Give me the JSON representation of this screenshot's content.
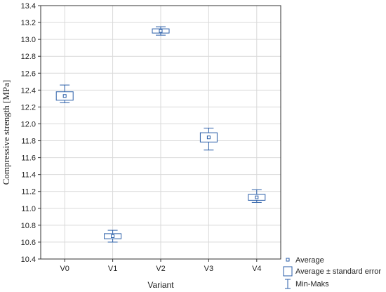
{
  "chart_data": {
    "type": "box",
    "xlabel": "Variant",
    "ylabel": "Compressive strength [MPa]",
    "categories": [
      "V0",
      "V1",
      "V2",
      "V3",
      "V4"
    ],
    "average": [
      12.33,
      10.67,
      13.1,
      11.84,
      11.13
    ],
    "standard_error": [
      0.05,
      0.03,
      0.025,
      0.055,
      0.035
    ],
    "min": [
      12.25,
      10.6,
      13.05,
      11.69,
      11.07
    ],
    "max": [
      12.46,
      10.74,
      13.15,
      11.95,
      11.22
    ],
    "ylim": [
      10.4,
      13.4
    ],
    "yticks": [
      "10.4",
      "10.6",
      "10.8",
      "11.0",
      "11.2",
      "11.4",
      "11.6",
      "11.8",
      "12.0",
      "12.2",
      "12.4",
      "12.6",
      "12.8",
      "13.0",
      "13.2",
      "13.4"
    ],
    "grid": true,
    "legend": {
      "placement": "bottom-right",
      "entries": [
        "Average",
        "Average ± standard error",
        "Min-Maks"
      ]
    },
    "colors": {
      "series": "#2a5ea8",
      "grid": "#d9d9d9",
      "axis": "#333333"
    }
  }
}
